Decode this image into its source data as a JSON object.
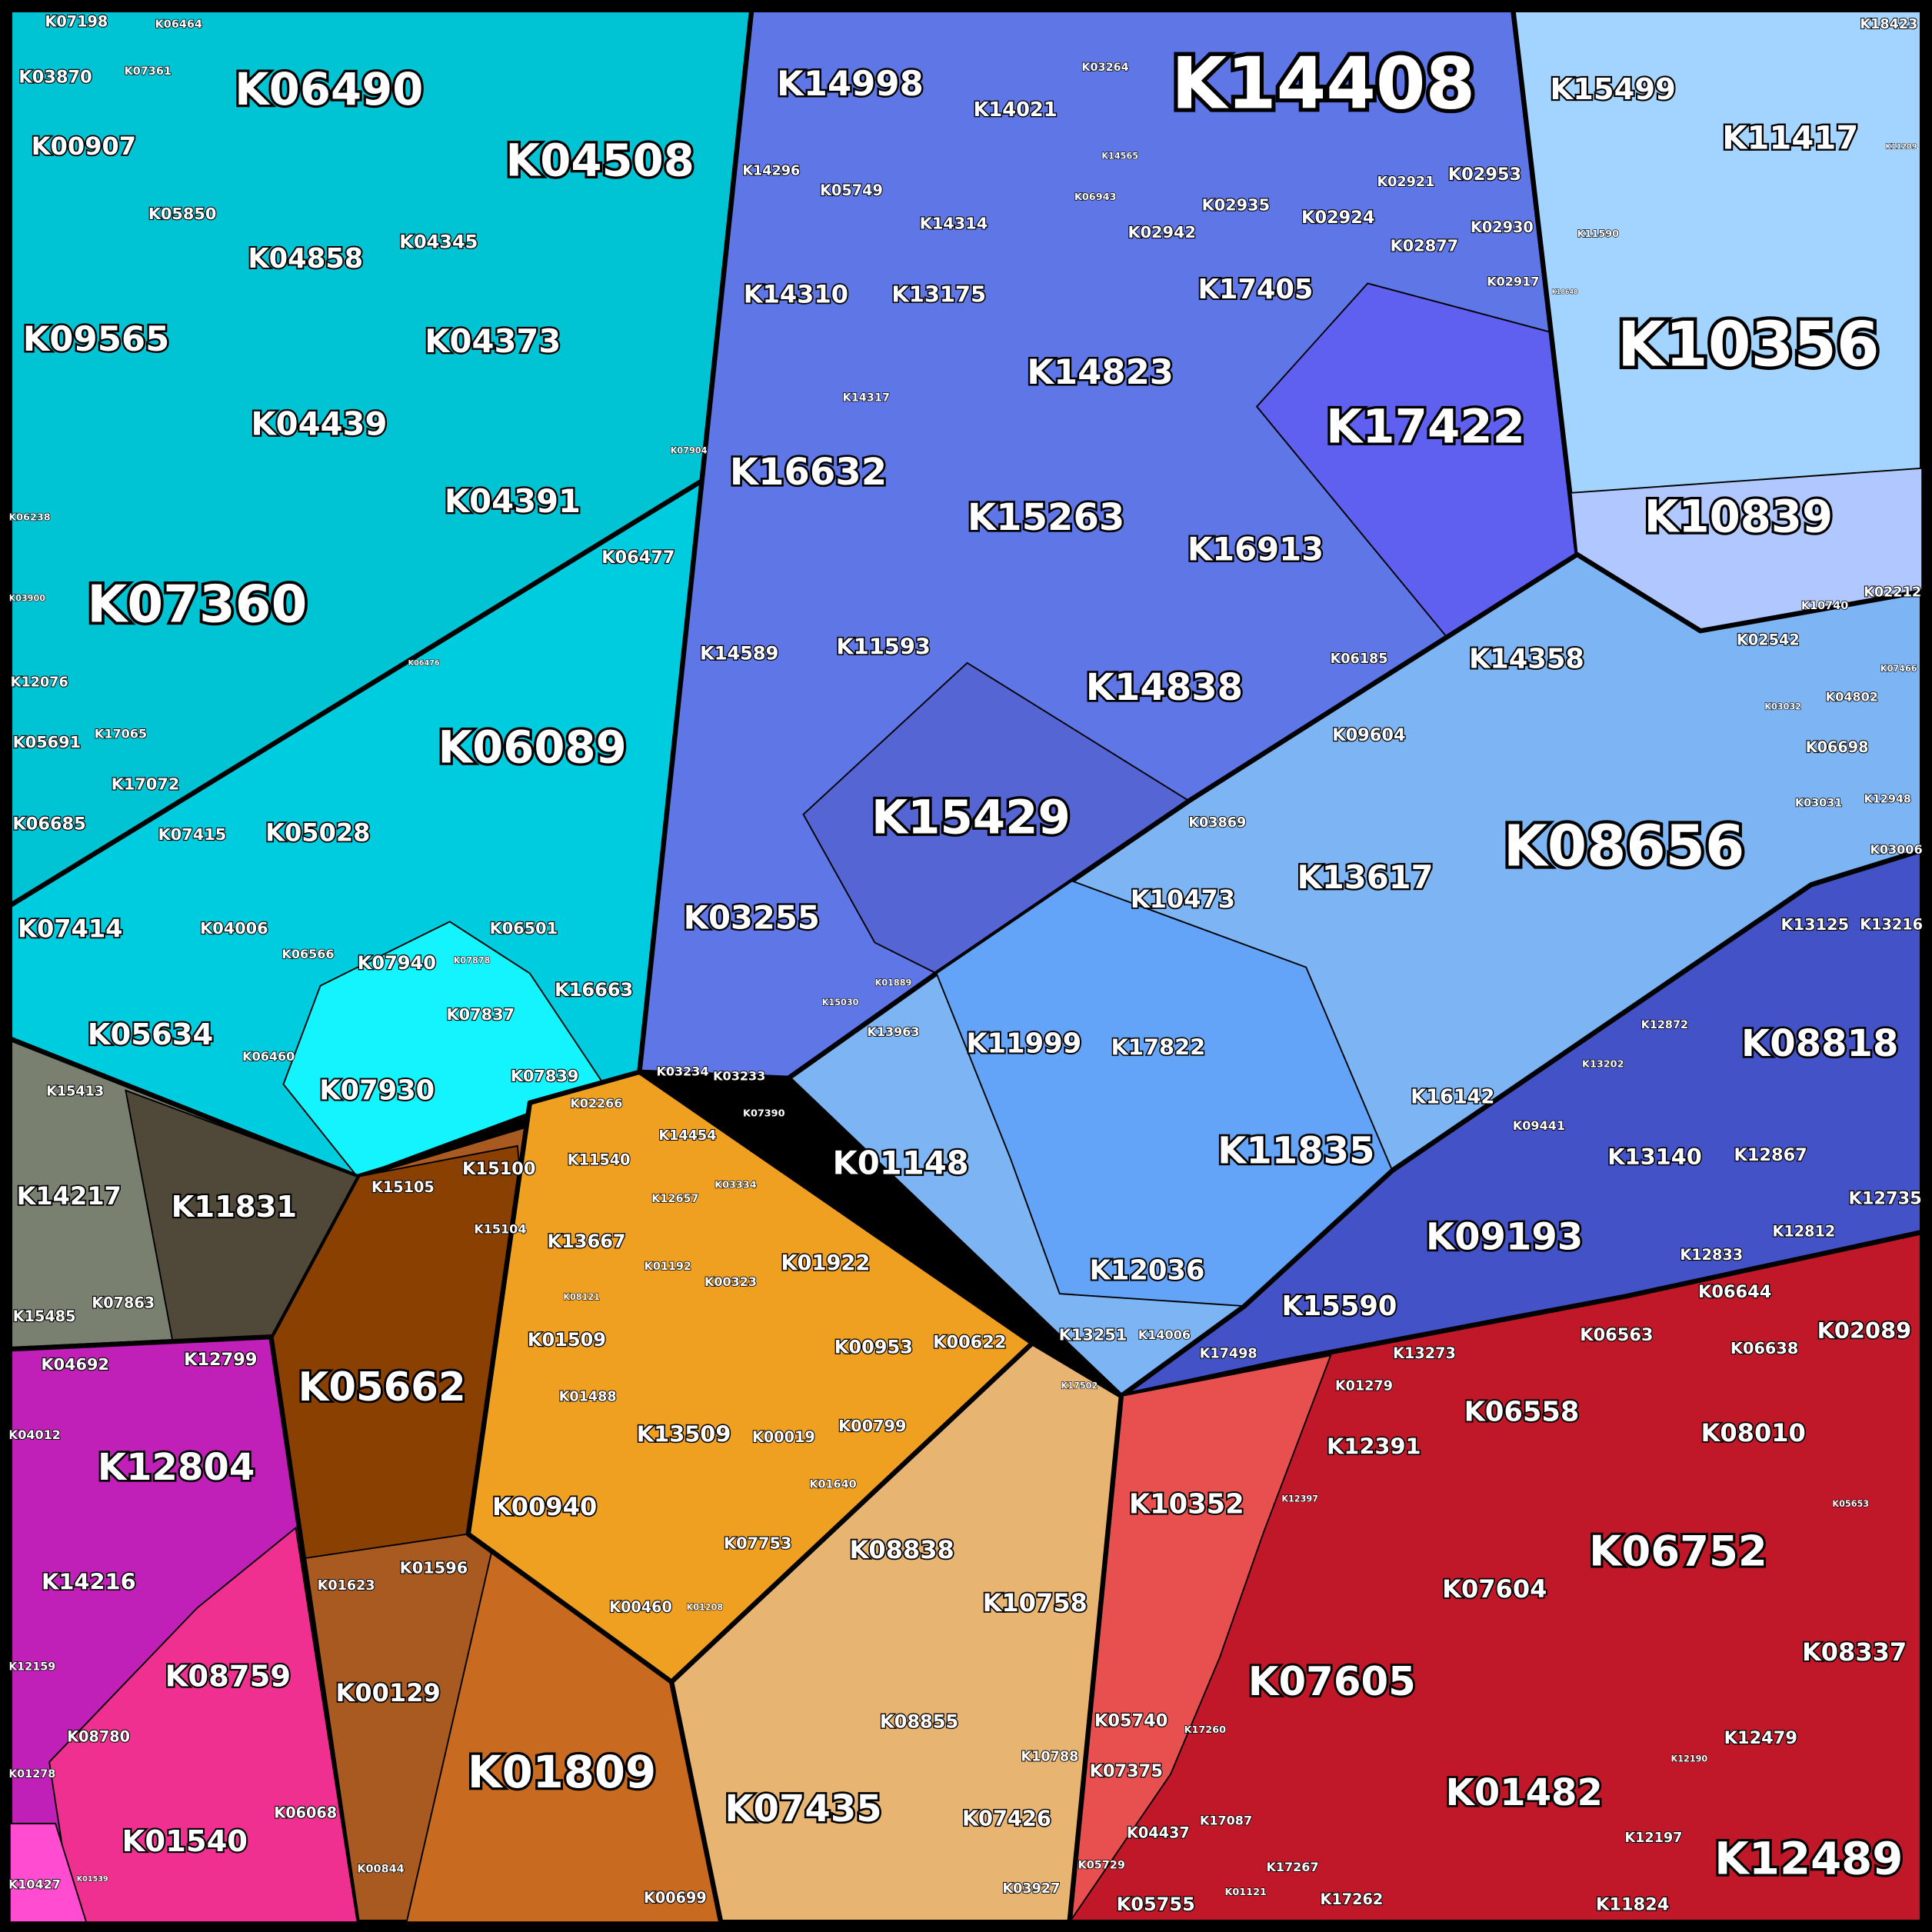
{
  "cells": [
    "K07198",
    "K06464",
    "K03870",
    "K07361",
    "K06490",
    "K04508",
    "K00907",
    "K05850",
    "K04858",
    "K04345",
    "K09565",
    "K04373",
    "K04439",
    "K07904",
    "K04391",
    "K06238",
    "K07360",
    "K06477",
    "K03900",
    "K06476",
    "K12076",
    "K17065",
    "K05691",
    "K06089",
    "K17072",
    "K06685",
    "K07415",
    "K05028",
    "K07414",
    "K04006",
    "K06501",
    "K06566",
    "K07940",
    "K07878",
    "K16663",
    "K05634",
    "K07837",
    "K06460",
    "K07839",
    "K07930",
    "K15413",
    "K14217",
    "K11831",
    "K07863",
    "K15485",
    "K04692",
    "K12799",
    "K04012",
    "K12804",
    "K14216",
    "K12159",
    "K08759",
    "K08780",
    "K01278",
    "K01540",
    "K06068",
    "K10427",
    "K01539",
    "K02266",
    "K15100",
    "K15105",
    "K15104",
    "K05662",
    "K01623",
    "K01596",
    "K00129",
    "K01809",
    "K00844",
    "K00699",
    "K11540",
    "K14454",
    "K03334",
    "K12657",
    "K13667",
    "K01192",
    "K01922",
    "K00323",
    "K08121",
    "K01509",
    "K00953",
    "K00622",
    "K01488",
    "K13509",
    "K00019",
    "K00799",
    "K01640",
    "K00940",
    "K07753",
    "K00460",
    "K01208",
    "K17502",
    "K08838",
    "K10758",
    "K08855",
    "K10788",
    "K07435",
    "K07426",
    "K03927",
    "K14998",
    "K14021",
    "K03264",
    "K14408",
    "K14565",
    "K14296",
    "K05749",
    "K06943",
    "K14314",
    "K02935",
    "K02921",
    "K02953",
    "K02942",
    "K02924",
    "K02930",
    "K02877",
    "K14310",
    "K13175",
    "K17405",
    "K02917",
    "K14823",
    "K14317",
    "K17422",
    "K16632",
    "K15263",
    "K16913",
    "K14589",
    "K11593",
    "K06185",
    "K14838",
    "K15429",
    "K03255",
    "K01889",
    "K15030",
    "K03234",
    "K03233",
    "K18423",
    "K15499",
    "K11417",
    "K11209",
    "K11590",
    "K18648",
    "K10356",
    "K10839",
    "K10740",
    "K02212",
    "K02542",
    "K14358",
    "K07466",
    "K03032",
    "K04802",
    "K09604",
    "K06698",
    "K03869",
    "K12948",
    "K03031",
    "K08656",
    "K13617",
    "K10473",
    "K13963",
    "K11999",
    "K17822",
    "K16142",
    "K07390",
    "K01148",
    "K11835",
    "K12036",
    "K13251",
    "K14006",
    "K03006",
    "K13125",
    "K13216",
    "K12872",
    "K08818",
    "K13202",
    "K09441",
    "K13140",
    "K12867",
    "K12735",
    "K09193",
    "K12812",
    "K12833",
    "K15590",
    "K17498",
    "K06644",
    "K02089",
    "K13273",
    "K06563",
    "K06638",
    "K01279",
    "K06558",
    "K08010",
    "K12391",
    "K05653",
    "K10352",
    "K12397",
    "K06752",
    "K07604",
    "K08337",
    "K07605",
    "K05740",
    "K17260",
    "K12479",
    "K12190",
    "K07375",
    "K01482",
    "K17087",
    "K04437",
    "K12197",
    "K12489",
    "K05729",
    "K17267",
    "K01121",
    "K17262",
    "K05755",
    "K11824"
  ]
}
